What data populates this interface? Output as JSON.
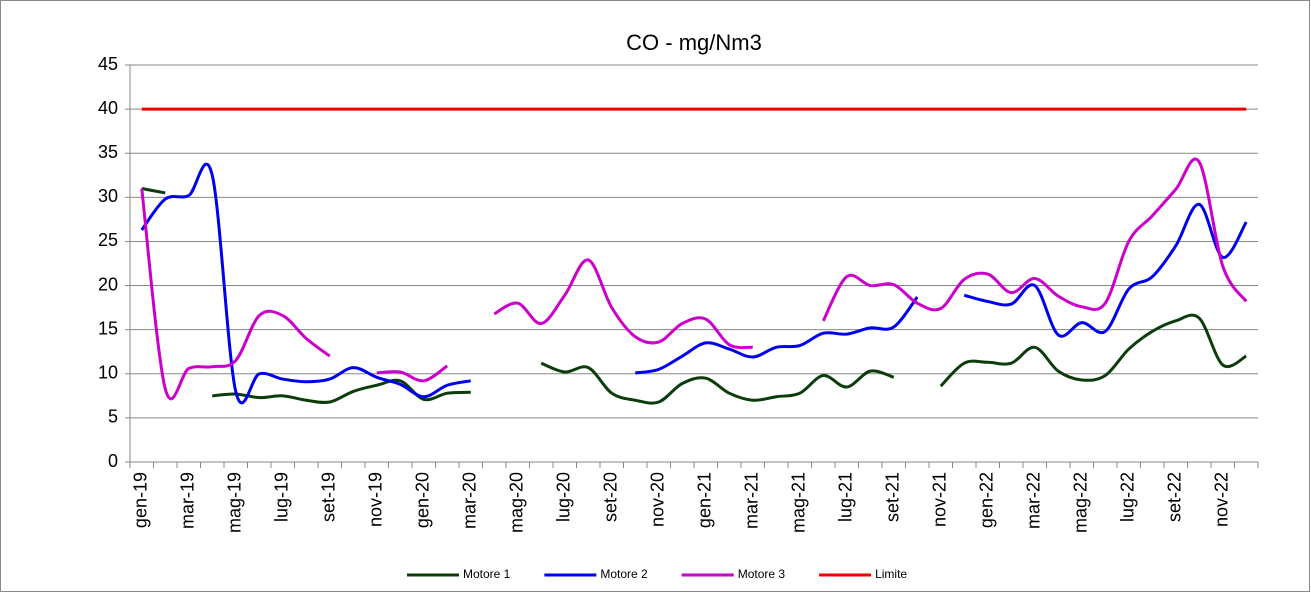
{
  "chart_data": {
    "type": "line",
    "title": "CO - mg/Nm3",
    "categories": [
      "gen-19",
      null,
      "mar-19",
      null,
      "mag-19",
      null,
      "lug-19",
      null,
      "set-19",
      null,
      "nov-19",
      null,
      "gen-20",
      null,
      "mar-20",
      null,
      "mag-20",
      null,
      "lug-20",
      null,
      "set-20",
      null,
      "nov-20",
      null,
      "gen-21",
      null,
      "mar-21",
      null,
      "mag-21",
      null,
      "lug-21",
      null,
      "set-21",
      null,
      "nov-21",
      null,
      "gen-22",
      null,
      "mar-22",
      null,
      "mag-22",
      null,
      "lug-22",
      null,
      "set-22",
      null,
      "nov-22",
      null
    ],
    "series": [
      {
        "name": "Motore 1",
        "color": "#0b3d0b",
        "values": [
          31.0,
          30.5,
          null,
          7.5,
          7.7,
          7.3,
          7.5,
          7.0,
          6.8,
          8.0,
          8.7,
          9.2,
          7.1,
          7.8,
          7.9,
          null,
          null,
          11.2,
          10.2,
          10.7,
          7.8,
          7.0,
          6.8,
          8.9,
          9.5,
          7.8,
          7.0,
          7.4,
          7.8,
          9.8,
          8.5,
          10.3,
          9.6,
          null,
          8.6,
          11.2,
          11.3,
          11.2,
          13.0,
          10.3,
          9.3,
          9.8,
          12.8,
          14.8,
          16.0,
          16.3,
          11.0,
          12.0
        ]
      },
      {
        "name": "Motore 2",
        "color": "#0000ee",
        "values": [
          26.3,
          29.8,
          30.2,
          32.5,
          8.0,
          10.0,
          9.4,
          9.1,
          9.4,
          10.7,
          9.6,
          8.8,
          7.4,
          8.7,
          9.2,
          null,
          null,
          null,
          null,
          null,
          null,
          10.1,
          10.5,
          12.0,
          13.5,
          12.8,
          11.9,
          13.0,
          13.2,
          14.6,
          14.5,
          15.2,
          15.3,
          18.7,
          null,
          18.9,
          18.2,
          17.9,
          20.0,
          14.4,
          15.8,
          14.8,
          19.6,
          21.0,
          24.5,
          29.2,
          23.2,
          27.2
        ]
      },
      {
        "name": "Motore 3",
        "color": "#cc00cc",
        "values": [
          31.0,
          8.3,
          10.6,
          10.8,
          11.5,
          16.6,
          16.6,
          14.0,
          12.0,
          null,
          10.1,
          10.2,
          9.2,
          10.9,
          null,
          16.8,
          18.0,
          15.7,
          18.9,
          22.9,
          17.5,
          14.2,
          13.6,
          15.7,
          16.2,
          13.3,
          13.0,
          null,
          null,
          16.0,
          21.0,
          20.0,
          20.1,
          18.0,
          17.4,
          20.7,
          21.3,
          19.2,
          20.8,
          18.8,
          17.6,
          18.0,
          25.0,
          27.9,
          30.9,
          34.0,
          22.2,
          18.2
        ]
      },
      {
        "name": "Limite",
        "color": "#ee0000",
        "values": [
          40,
          40,
          40,
          40,
          40,
          40,
          40,
          40,
          40,
          40,
          40,
          40,
          40,
          40,
          40,
          40,
          40,
          40,
          40,
          40,
          40,
          40,
          40,
          40,
          40,
          40,
          40,
          40,
          40,
          40,
          40,
          40,
          40,
          40,
          40,
          40,
          40,
          40,
          40,
          40,
          40,
          40,
          40,
          40,
          40,
          40,
          40,
          40
        ]
      }
    ],
    "ylim": [
      0,
      45
    ],
    "yticks": [
      0,
      5,
      10,
      15,
      20,
      25,
      30,
      35,
      40,
      45
    ],
    "grid": true,
    "legend": "bottom"
  }
}
